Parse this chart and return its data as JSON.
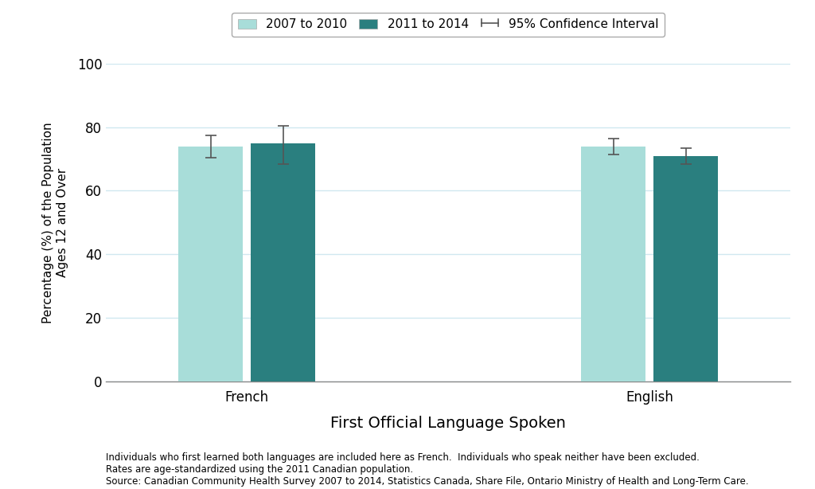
{
  "categories": [
    "French",
    "English"
  ],
  "values_2007_2010": [
    74.0,
    74.0
  ],
  "values_2011_2014": [
    75.0,
    71.0
  ],
  "ci_2007_2010_lower": [
    70.5,
    71.5
  ],
  "ci_2007_2010_upper": [
    77.5,
    76.5
  ],
  "ci_2011_2014_lower": [
    68.5,
    68.5
  ],
  "ci_2011_2014_upper": [
    80.5,
    73.5
  ],
  "color_2007_2010": "#a8ddd9",
  "color_2011_2014": "#2a7f7f",
  "bar_width": 0.32,
  "ylim": [
    0,
    100
  ],
  "yticks": [
    0,
    20,
    40,
    60,
    80,
    100
  ],
  "xlabel": "First Official Language Spoken",
  "ylabel": "Percentage (%) of the Population\nAges 12 and Over",
  "legend_label_1": "2007 to 2010",
  "legend_label_2": "2011 to 2014",
  "legend_label_ci": "95% Confidence Interval",
  "errorbar_color": "#555555",
  "caption_line1": "Individuals who first learned both languages are included here as French.  Individuals who speak neither have been excluded.",
  "caption_line2": "Rates are age-standardized using the 2011 Canadian population.",
  "caption_line3": "Source: Canadian Community Health Survey 2007 to 2014, Statistics Canada, Share File, Ontario Ministry of Health and Long-Term Care.",
  "grid_color": "#d0e8f0",
  "background_color": "#ffffff",
  "xlabel_fontsize": 14,
  "ylabel_fontsize": 11,
  "tick_fontsize": 12,
  "legend_fontsize": 11,
  "caption_fontsize": 8.5,
  "group_centers": [
    1.0,
    3.0
  ]
}
